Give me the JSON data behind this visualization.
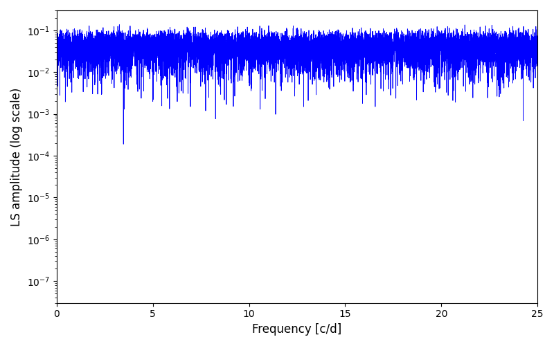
{
  "title": "",
  "xlabel": "Frequency [c/d]",
  "ylabel": "LS amplitude (log scale)",
  "line_color": "#0000ff",
  "line_width": 0.6,
  "xlim": [
    0,
    25
  ],
  "ylim": [
    3e-08,
    0.3
  ],
  "yscale": "log",
  "background_color": "#ffffff",
  "figsize": [
    8.0,
    5.0
  ],
  "dpi": 100,
  "seed": 12345,
  "n_points": 10000,
  "freq_max": 25.0,
  "yticks": [
    1e-07,
    1e-06,
    1e-05,
    0.0001,
    0.001,
    0.01,
    0.1
  ]
}
